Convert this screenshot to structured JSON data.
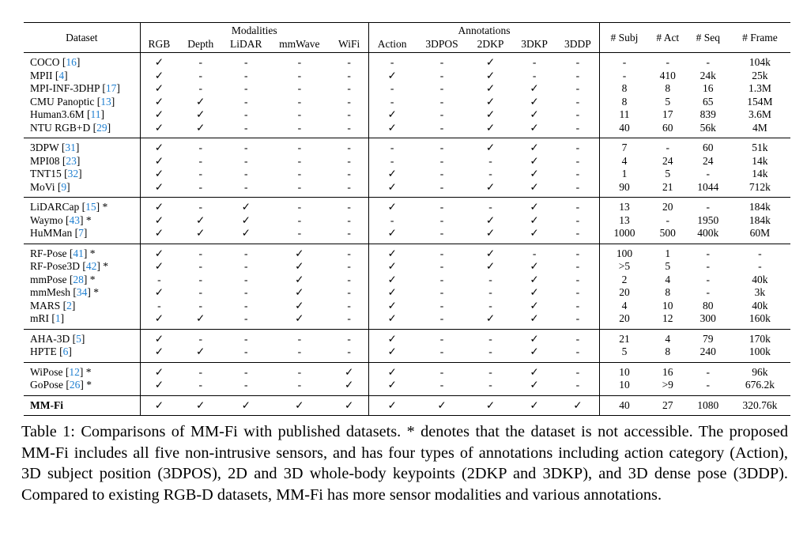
{
  "table": {
    "group_headers": [
      {
        "label": "Modalities",
        "span": 5
      },
      {
        "label": "Annotations",
        "span": 5
      }
    ],
    "columns": [
      "Dataset",
      "RGB",
      "Depth",
      "LiDAR",
      "mmWave",
      "WiFi",
      "Action",
      "3DPOS",
      "2DKP",
      "3DKP",
      "3DDP",
      "# Subj",
      "# Act",
      "# Seq",
      "# Frame"
    ],
    "groups": [
      [
        [
          "COCO [16]",
          "✓",
          "-",
          "-",
          "-",
          "-",
          "-",
          "-",
          "✓",
          "-",
          "-",
          "-",
          "-",
          "-",
          "104k"
        ],
        [
          "MPII [4]",
          "✓",
          "-",
          "-",
          "-",
          "-",
          "✓",
          "-",
          "✓",
          "-",
          "-",
          "-",
          "410",
          "24k",
          "25k"
        ],
        [
          "MPI-INF-3DHP [17]",
          "✓",
          "-",
          "-",
          "-",
          "-",
          "-",
          "-",
          "✓",
          "✓",
          "-",
          "8",
          "8",
          "16",
          "1.3M"
        ],
        [
          "CMU Panoptic [13]",
          "✓",
          "✓",
          "-",
          "-",
          "-",
          "-",
          "-",
          "✓",
          "✓",
          "-",
          "8",
          "5",
          "65",
          "154M"
        ],
        [
          "Human3.6M [11]",
          "✓",
          "✓",
          "-",
          "-",
          "-",
          "✓",
          "-",
          "✓",
          "✓",
          "-",
          "11",
          "17",
          "839",
          "3.6M"
        ],
        [
          "NTU RGB+D [29]",
          "✓",
          "✓",
          "-",
          "-",
          "-",
          "✓",
          "-",
          "✓",
          "✓",
          "-",
          "40",
          "60",
          "56k",
          "4M"
        ]
      ],
      [
        [
          "3DPW [31]",
          "✓",
          "-",
          "-",
          "-",
          "-",
          "-",
          "-",
          "✓",
          "✓",
          "-",
          "7",
          "-",
          "60",
          "51k"
        ],
        [
          "MPI08 [23]",
          "✓",
          "-",
          "-",
          "-",
          "-",
          "-",
          "-",
          "-",
          "✓",
          "-",
          "4",
          "24",
          "24",
          "14k"
        ],
        [
          "TNT15 [32]",
          "✓",
          "-",
          "-",
          "-",
          "-",
          "✓",
          "-",
          "-",
          "✓",
          "-",
          "1",
          "5",
          "-",
          "14k"
        ],
        [
          "MoVi [9]",
          "✓",
          "-",
          "-",
          "-",
          "-",
          "✓",
          "-",
          "✓",
          "✓",
          "-",
          "90",
          "21",
          "1044",
          "712k"
        ]
      ],
      [
        [
          "LiDARCap [15] *",
          "✓",
          "-",
          "✓",
          "-",
          "-",
          "✓",
          "-",
          "-",
          "✓",
          "-",
          "13",
          "20",
          "-",
          "184k"
        ],
        [
          "Waymo [43] *",
          "✓",
          "✓",
          "✓",
          "-",
          "-",
          "-",
          "-",
          "✓",
          "✓",
          "-",
          "13",
          "-",
          "1950",
          "184k"
        ],
        [
          "HuMMan [7]",
          "✓",
          "✓",
          "✓",
          "-",
          "-",
          "✓",
          "-",
          "✓",
          "✓",
          "-",
          "1000",
          "500",
          "400k",
          "60M"
        ]
      ],
      [
        [
          "RF-Pose [41] *",
          "✓",
          "-",
          "-",
          "✓",
          "-",
          "✓",
          "-",
          "✓",
          "-",
          "-",
          "100",
          "1",
          "-",
          "-"
        ],
        [
          "RF-Pose3D [42] *",
          "✓",
          "-",
          "-",
          "✓",
          "-",
          "✓",
          "-",
          "✓",
          "✓",
          "-",
          ">5",
          "5",
          "-",
          "-"
        ],
        [
          "mmPose [28] *",
          "-",
          "-",
          "-",
          "✓",
          "-",
          "✓",
          "-",
          "-",
          "✓",
          "-",
          "2",
          "4",
          "-",
          "40k"
        ],
        [
          "mmMesh [34] *",
          "✓",
          "-",
          "-",
          "✓",
          "-",
          "✓",
          "-",
          "-",
          "✓",
          "-",
          "20",
          "8",
          "-",
          "3k"
        ],
        [
          "MARS [2]",
          "-",
          "-",
          "-",
          "✓",
          "-",
          "✓",
          "-",
          "-",
          "✓",
          "-",
          "4",
          "10",
          "80",
          "40k"
        ],
        [
          "mRI [1]",
          "✓",
          "✓",
          "-",
          "✓",
          "-",
          "✓",
          "-",
          "✓",
          "✓",
          "-",
          "20",
          "12",
          "300",
          "160k"
        ]
      ],
      [
        [
          "AHA-3D [5]",
          "✓",
          "-",
          "-",
          "-",
          "-",
          "✓",
          "-",
          "-",
          "✓",
          "-",
          "21",
          "4",
          "79",
          "170k"
        ],
        [
          "HPTE [6]",
          "✓",
          "✓",
          "-",
          "-",
          "-",
          "✓",
          "-",
          "-",
          "✓",
          "-",
          "5",
          "8",
          "240",
          "100k"
        ]
      ],
      [
        [
          "WiPose [12] *",
          "✓",
          "-",
          "-",
          "-",
          "✓",
          "✓",
          "-",
          "-",
          "✓",
          "-",
          "10",
          "16",
          "-",
          "96k"
        ],
        [
          "GoPose [26] *",
          "✓",
          "-",
          "-",
          "-",
          "✓",
          "✓",
          "-",
          "-",
          "✓",
          "-",
          "10",
          ">9",
          "-",
          "676.2k"
        ]
      ],
      [
        [
          "MM-Fi",
          "✓",
          "✓",
          "✓",
          "✓",
          "✓",
          "✓",
          "✓",
          "✓",
          "✓",
          "✓",
          "40",
          "27",
          "1080",
          "320.76k"
        ]
      ]
    ]
  },
  "caption": "Table 1: Comparisons of MM-Fi with published datasets. * denotes that the dataset is not accessible. The proposed MM-Fi includes all five non-intrusive sensors, and has four types of annotations including action category (Action), 3D subject position (3DPOS), 2D and 3D whole-body keypoints (2DKP and 3DKP), and 3D dense pose (3DDP). Compared to existing RGB-D datasets, MM-Fi has more sensor modalities and various annotations."
}
